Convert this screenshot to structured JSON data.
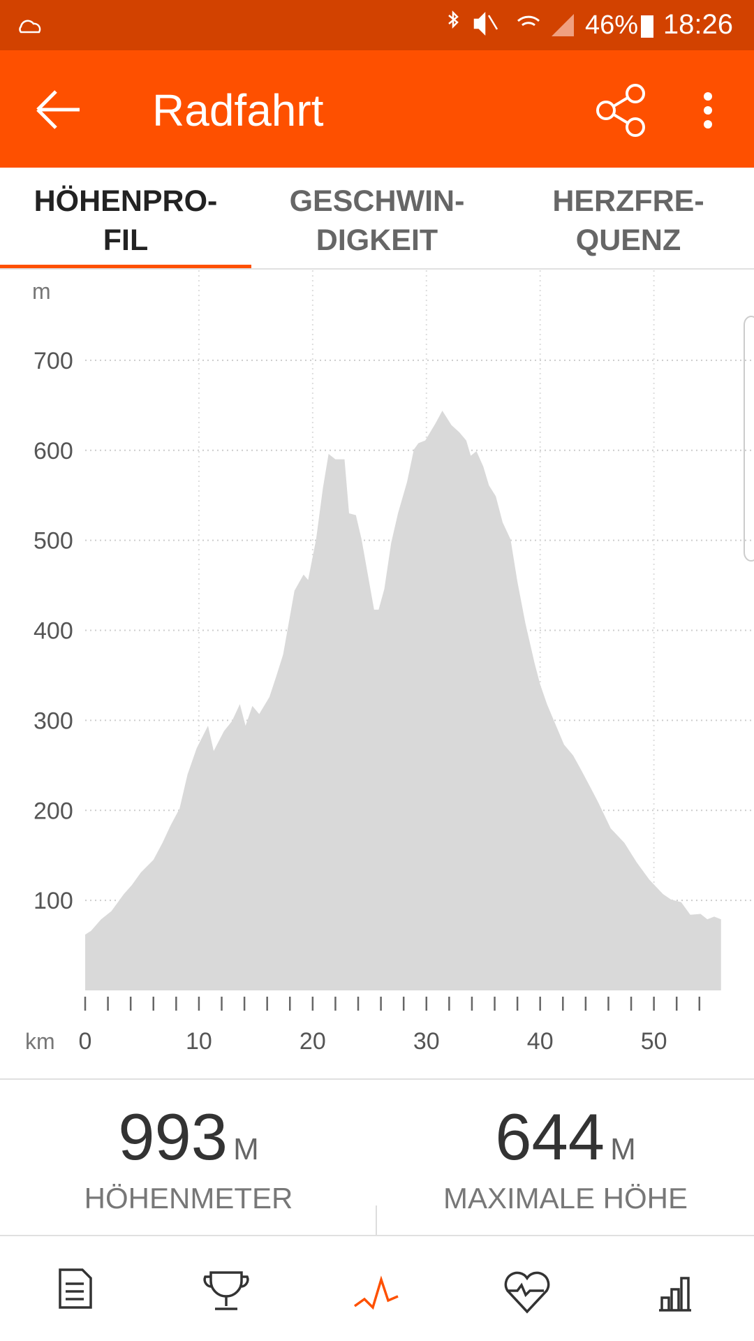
{
  "status_bar": {
    "battery": "46%",
    "time": "18:26"
  },
  "app_bar": {
    "title": "Radfahrt"
  },
  "tabs": [
    {
      "lines": [
        "HÖHENPRO-",
        "FIL"
      ],
      "active": true
    },
    {
      "lines": [
        "GESCHWIN-",
        "DIGKEIT"
      ],
      "active": false
    },
    {
      "lines": [
        "HERZFRE-",
        "QUENZ"
      ],
      "active": false
    }
  ],
  "chart_data": {
    "type": "area",
    "color": "#d9d9d9",
    "y_unit": "m",
    "x_unit": "km",
    "x": [
      0,
      0.5,
      1.4,
      2.3,
      3.4,
      4.1,
      4.9,
      6,
      6.8,
      7.5,
      8.3,
      9,
      9.8,
      10.8,
      11.3,
      12.2,
      12.9,
      13.6,
      14.1,
      14.7,
      15.3,
      16.2,
      16.8,
      17.4,
      18.4,
      19.2,
      19.6,
      20.3,
      20.9,
      21.4,
      22,
      22.8,
      23.2,
      23.8,
      24.3,
      25.4,
      25.8,
      26.3,
      26.9,
      27.5,
      28.3,
      28.9,
      29.3,
      29.9,
      30.8,
      31.4,
      32.2,
      32.9,
      33.5,
      33.9,
      34.4,
      35,
      35.5,
      36.1,
      36.7,
      37.4,
      38,
      38.7,
      39.5,
      40,
      40.6,
      41.4,
      42.1,
      42.9,
      43.6,
      44.4,
      45.1,
      46.2,
      47.4,
      48.5,
      49.6,
      50.8,
      51.5,
      52.4,
      53.2,
      54.1,
      54.7,
      55.3,
      55.9
    ],
    "values": [
      62,
      66,
      79,
      88,
      107,
      117,
      131,
      145,
      164,
      183,
      202,
      240,
      269,
      294,
      266,
      288,
      299,
      318,
      294,
      316,
      307,
      326,
      349,
      373,
      444,
      462,
      456,
      501,
      558,
      596,
      590,
      590,
      530,
      528,
      501,
      423,
      423,
      446,
      497,
      530,
      565,
      601,
      608,
      611,
      630,
      644,
      628,
      620,
      611,
      594,
      599,
      582,
      561,
      549,
      520,
      501,
      454,
      408,
      364,
      340,
      318,
      294,
      273,
      261,
      245,
      226,
      209,
      180,
      164,
      142,
      123,
      107,
      101,
      98,
      84,
      85,
      79,
      82,
      79
    ],
    "xlim": [
      0,
      58.8
    ],
    "ylim": [
      0,
      800
    ],
    "xticks": [
      0,
      10,
      20,
      30,
      40,
      50
    ],
    "xminorticks": [
      0,
      2,
      4,
      6,
      8,
      10,
      12,
      14,
      16,
      18,
      20,
      22,
      24,
      26,
      28,
      30,
      32,
      34,
      36,
      38,
      40,
      42,
      44,
      46,
      48,
      50,
      52,
      54
    ],
    "yticks": [
      100,
      200,
      300,
      400,
      500,
      600,
      700
    ],
    "grid": true
  },
  "stats": [
    {
      "value": 993,
      "unit": "M",
      "label": "HÖHENMETER"
    },
    {
      "value": 644,
      "unit": "M",
      "label": "MAXIMALE HÖHE"
    }
  ]
}
